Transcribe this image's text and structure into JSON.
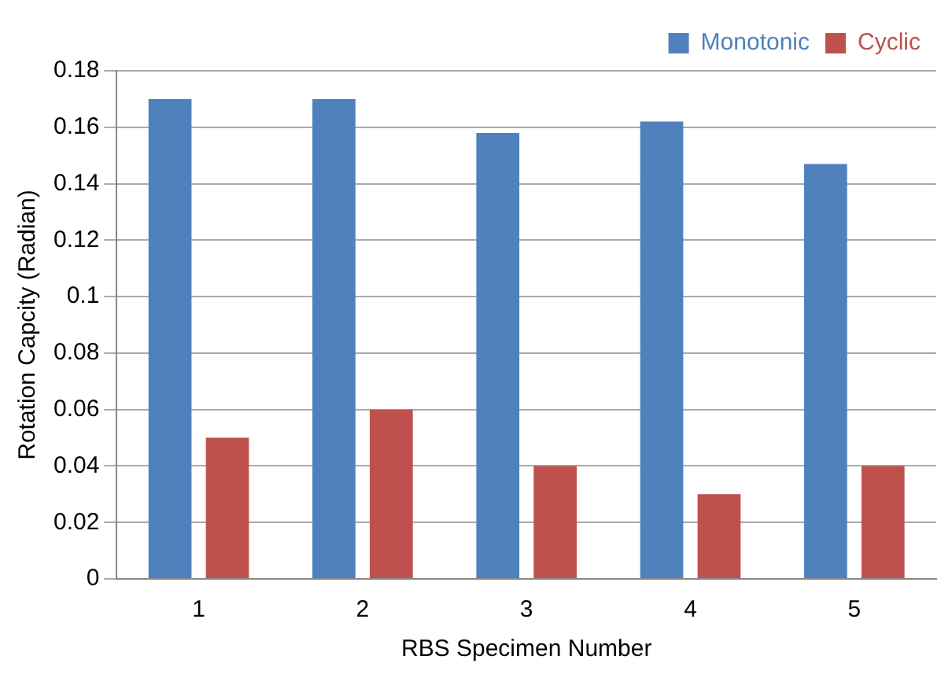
{
  "chart_data": {
    "type": "bar",
    "xlabel": "RBS Specimen Number",
    "ylabel": "Rotation Capcity (Radian)",
    "categories": [
      "1",
      "2",
      "3",
      "4",
      "5"
    ],
    "series": [
      {
        "name": "Monotonic",
        "color": "#4f81bd",
        "values": [
          0.17,
          0.17,
          0.158,
          0.162,
          0.147
        ]
      },
      {
        "name": "Cyclic",
        "color": "#c0504d",
        "values": [
          0.05,
          0.06,
          0.04,
          0.03,
          0.04
        ]
      }
    ],
    "ylim": [
      0,
      0.18
    ],
    "yticks": [
      0,
      0.02,
      0.04,
      0.06,
      0.08,
      0.1,
      0.12,
      0.14,
      0.16,
      0.18
    ],
    "grid": "y",
    "legend": "top right"
  }
}
